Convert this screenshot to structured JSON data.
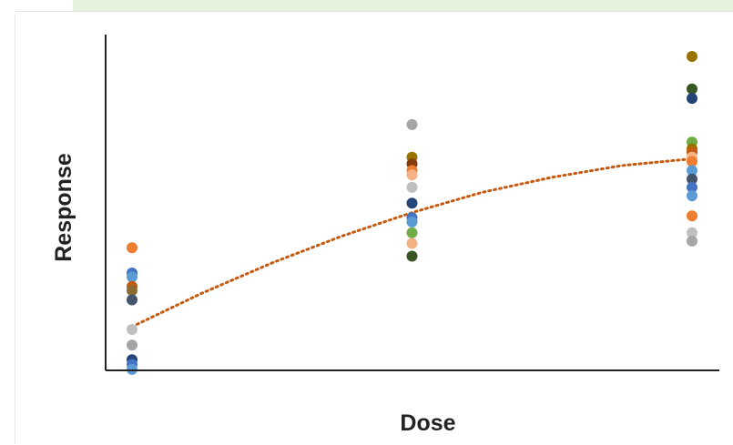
{
  "chart_data": {
    "type": "scatter",
    "title": "",
    "xlabel": "Dose",
    "ylabel": "Response",
    "grid": false,
    "legend": "none",
    "xlim": [
      0,
      2.15
    ],
    "ylim": [
      0,
      10
    ],
    "categories": [
      0,
      1,
      2
    ],
    "points": [
      {
        "x": 0,
        "y": 3.65,
        "color": "#ed7d31"
      },
      {
        "x": 0,
        "y": 2.9,
        "color": "#4472c4"
      },
      {
        "x": 0,
        "y": 2.78,
        "color": "#5b9bd5"
      },
      {
        "x": 0,
        "y": 2.5,
        "color": "#c55a11"
      },
      {
        "x": 0,
        "y": 2.38,
        "color": "#8c6a32"
      },
      {
        "x": 0,
        "y": 2.1,
        "color": "#44546a"
      },
      {
        "x": 0,
        "y": 1.22,
        "color": "#bfbfbf"
      },
      {
        "x": 0,
        "y": 0.75,
        "color": "#a5a5a5"
      },
      {
        "x": 0,
        "y": 0.32,
        "color": "#264478"
      },
      {
        "x": 0,
        "y": 0.18,
        "color": "#4472c4"
      },
      {
        "x": 0,
        "y": 0.03,
        "color": "#5b9bd5"
      },
      {
        "x": 1,
        "y": 7.32,
        "color": "#a5a5a5"
      },
      {
        "x": 1,
        "y": 6.35,
        "color": "#997300"
      },
      {
        "x": 1,
        "y": 6.15,
        "color": "#843c0c"
      },
      {
        "x": 1,
        "y": 5.95,
        "color": "#ed7d31"
      },
      {
        "x": 1,
        "y": 5.82,
        "color": "#f4b183"
      },
      {
        "x": 1,
        "y": 5.45,
        "color": "#bfbfbf"
      },
      {
        "x": 1,
        "y": 4.98,
        "color": "#264478"
      },
      {
        "x": 1,
        "y": 4.55,
        "color": "#4472c4"
      },
      {
        "x": 1,
        "y": 4.42,
        "color": "#5b9bd5"
      },
      {
        "x": 1,
        "y": 4.1,
        "color": "#70ad47"
      },
      {
        "x": 1,
        "y": 3.78,
        "color": "#f4b183"
      },
      {
        "x": 1,
        "y": 3.4,
        "color": "#375623"
      },
      {
        "x": 2,
        "y": 9.35,
        "color": "#997300"
      },
      {
        "x": 2,
        "y": 8.38,
        "color": "#375623"
      },
      {
        "x": 2,
        "y": 8.1,
        "color": "#264478"
      },
      {
        "x": 2,
        "y": 6.8,
        "color": "#70ad47"
      },
      {
        "x": 2,
        "y": 6.6,
        "color": "#997300"
      },
      {
        "x": 2,
        "y": 6.5,
        "color": "#c55a11"
      },
      {
        "x": 2,
        "y": 6.35,
        "color": "#f4b183"
      },
      {
        "x": 2,
        "y": 6.22,
        "color": "#ed7d31"
      },
      {
        "x": 2,
        "y": 5.95,
        "color": "#5b9bd5"
      },
      {
        "x": 2,
        "y": 5.7,
        "color": "#44546a"
      },
      {
        "x": 2,
        "y": 5.45,
        "color": "#4472c4"
      },
      {
        "x": 2,
        "y": 5.2,
        "color": "#5b9bd5"
      },
      {
        "x": 2,
        "y": 4.6,
        "color": "#ed7d31"
      },
      {
        "x": 2,
        "y": 4.1,
        "color": "#bfbfbf"
      },
      {
        "x": 2,
        "y": 3.85,
        "color": "#a5a5a5"
      }
    ],
    "trendline": {
      "style": "dotted",
      "color": "#c55a11",
      "x": [
        0,
        0.25,
        0.5,
        0.75,
        1,
        1.25,
        1.5,
        1.75,
        2
      ],
      "y": [
        1.3,
        2.3,
        3.2,
        4.0,
        4.7,
        5.3,
        5.75,
        6.1,
        6.3
      ]
    }
  }
}
